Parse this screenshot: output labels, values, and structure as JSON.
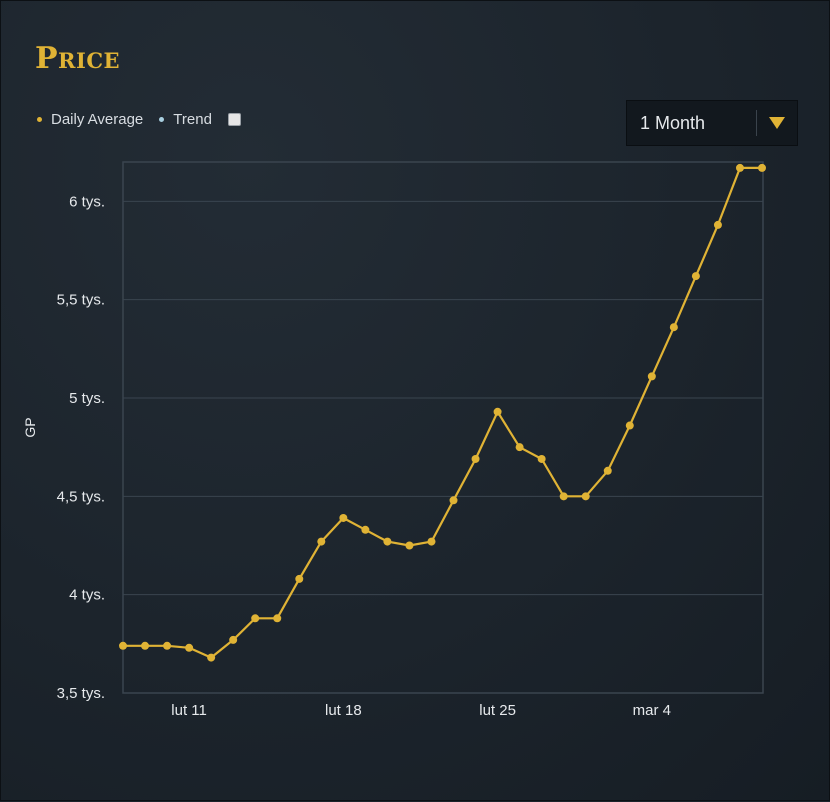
{
  "title": "Price",
  "legend": {
    "daily_average": "Daily Average",
    "trend": "Trend"
  },
  "range_select": {
    "value": "1 Month"
  },
  "colors": {
    "accent": "#e0b335",
    "line": "#e0b335",
    "trend_dot": "#a9cfe0",
    "grid": "#3a454f"
  },
  "chart_data": {
    "type": "line",
    "ylabel": "GP",
    "ylim": [
      3500,
      6200
    ],
    "yticks": [
      {
        "value": 3500,
        "label": "3,5 tys."
      },
      {
        "value": 4000,
        "label": "4 tys."
      },
      {
        "value": 4500,
        "label": "4,5 tys."
      },
      {
        "value": 5000,
        "label": "5 tys."
      },
      {
        "value": 5500,
        "label": "5,5 tys."
      },
      {
        "value": 6000,
        "label": "6 tys."
      }
    ],
    "xticks": [
      {
        "index": 3,
        "label": "lut 11"
      },
      {
        "index": 10,
        "label": "lut 18"
      },
      {
        "index": 17,
        "label": "lut 25"
      },
      {
        "index": 24,
        "label": "mar 4"
      }
    ],
    "series": [
      {
        "name": "Daily Average",
        "values": [
          3740,
          3740,
          3740,
          3730,
          3680,
          3770,
          3880,
          3880,
          4080,
          4270,
          4390,
          4330,
          4270,
          4250,
          4270,
          4480,
          4690,
          4930,
          4750,
          4690,
          4500,
          4500,
          4630,
          4860,
          5110,
          5360,
          5620,
          5880,
          6170,
          6170
        ]
      }
    ]
  }
}
